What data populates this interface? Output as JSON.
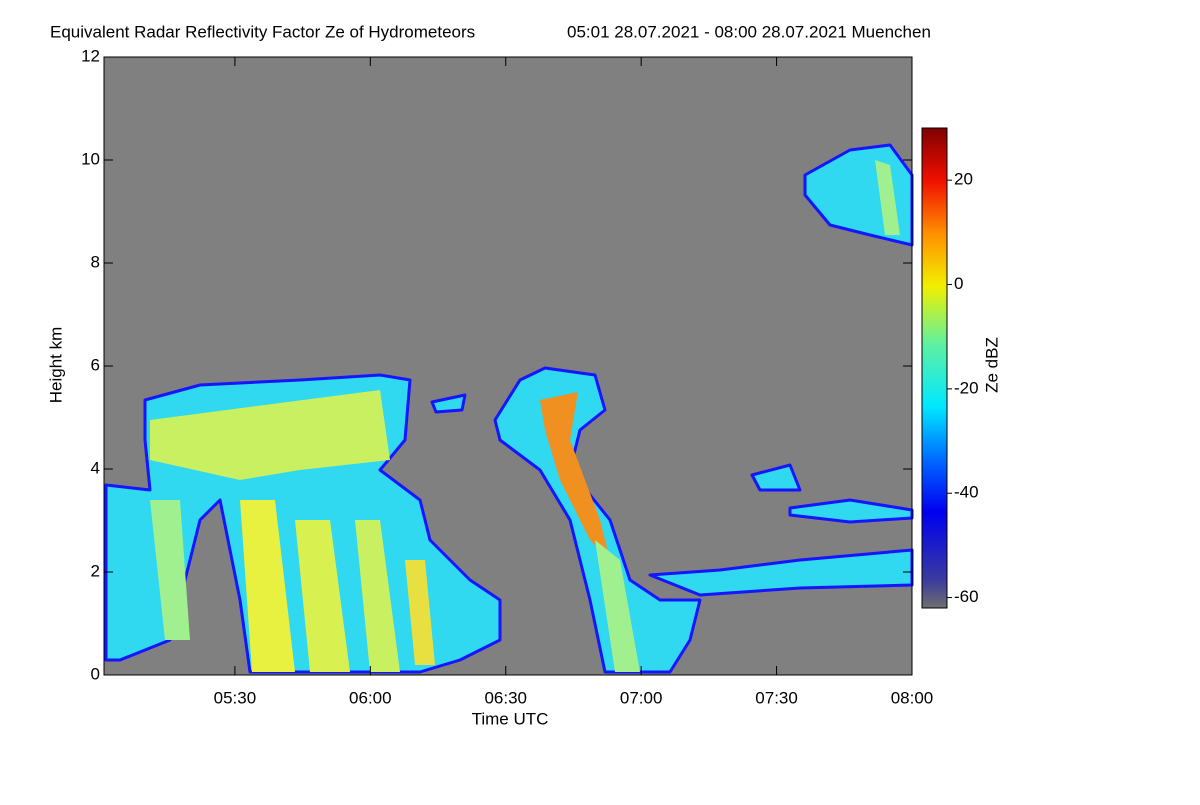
{
  "chart_data": {
    "type": "heatmap",
    "title": "Equivalent Radar Reflectivity Factor Ze of Hydrometeors",
    "subtitle": "05:01 28.07.2021 - 08:00 28.07.2021 Muenchen",
    "x_label": "Time UTC",
    "y_label": "Height km",
    "xlim": [
      301,
      480
    ],
    "xticks": [
      {
        "value": 330,
        "label": "05:30"
      },
      {
        "value": 360,
        "label": "06:00"
      },
      {
        "value": 390,
        "label": "06:30"
      },
      {
        "value": 420,
        "label": "07:00"
      },
      {
        "value": 450,
        "label": "07:30"
      },
      {
        "value": 480,
        "label": "08:00"
      }
    ],
    "ylim": [
      0,
      12
    ],
    "yticks": [
      0,
      2,
      4,
      6,
      8,
      10,
      12
    ],
    "colorbar": {
      "label": "Ze dBZ",
      "lim": [
        -62,
        30
      ],
      "ticks": [
        -60,
        -40,
        -20,
        0,
        20
      ]
    }
  }
}
